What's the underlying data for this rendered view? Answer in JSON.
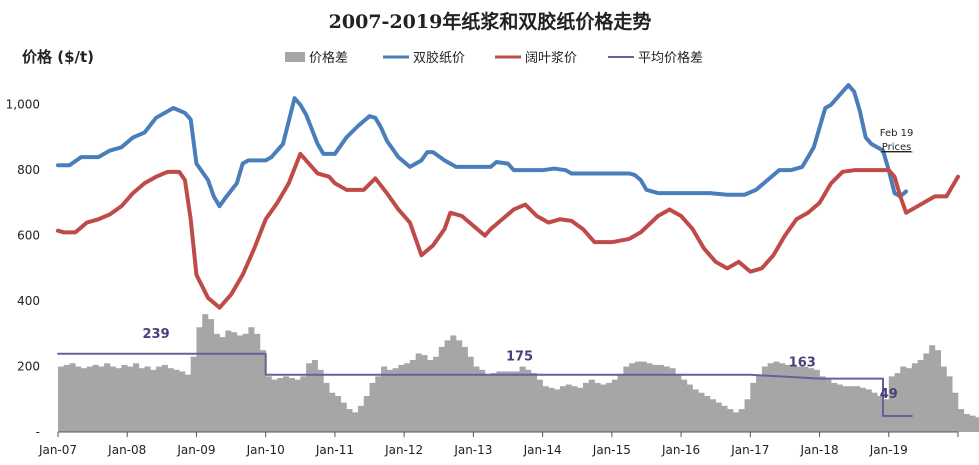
{
  "chart_data": {
    "type": "line",
    "title": "2007-2019年纸浆和双胶纸价格走势",
    "ylabel": "价格 ($/t)",
    "ylim": [
      0,
      1100
    ],
    "y_ticks": [
      "-",
      "200",
      "400",
      "600",
      "800",
      "1,000"
    ],
    "y_tick_values": [
      0,
      200,
      400,
      600,
      800,
      1000
    ],
    "x_ticks": [
      "Jan-07",
      "Jan-08",
      "Jan-09",
      "Jan-10",
      "Jan-11",
      "Jan-12",
      "Jan-13",
      "Jan-14",
      "Jan-15",
      "Jan-16",
      "Jan-17",
      "Jan-18",
      "Jan-19"
    ],
    "x_tick_values": [
      "2007-01",
      "2008-01",
      "2009-01",
      "2010-01",
      "2011-01",
      "2012-01",
      "2013-01",
      "2014-01",
      "2015-01",
      "2016-01",
      "2017-01",
      "2018-01",
      "2019-01"
    ],
    "x_end": "2020-01",
    "grid": false,
    "legend_position": "top",
    "legend": [
      {
        "name": "价格差",
        "kind": "bar",
        "color": "#a6a6a6"
      },
      {
        "name": "双胶纸价",
        "kind": "line",
        "color": "#4a7ebb"
      },
      {
        "name": "阔叶浆价",
        "kind": "line",
        "color": "#be4b48"
      },
      {
        "name": "平均价格差",
        "kind": "line",
        "color": "#6a5f9a"
      }
    ],
    "series": [
      {
        "name": "双胶纸价",
        "color": "#4a7ebb",
        "points": [
          [
            "2007-01",
            815
          ],
          [
            "2007-03",
            815
          ],
          [
            "2007-05",
            840
          ],
          [
            "2007-08",
            840
          ],
          [
            "2007-10",
            860
          ],
          [
            "2007-12",
            870
          ],
          [
            "2008-02",
            900
          ],
          [
            "2008-04",
            915
          ],
          [
            "2008-06",
            960
          ],
          [
            "2008-09",
            990
          ],
          [
            "2008-11",
            975
          ],
          [
            "2008-12",
            955
          ],
          [
            "2009-01",
            820
          ],
          [
            "2009-03",
            770
          ],
          [
            "2009-04",
            720
          ],
          [
            "2009-05",
            690
          ],
          [
            "2009-06",
            715
          ],
          [
            "2009-08",
            760
          ],
          [
            "2009-09",
            820
          ],
          [
            "2009-10",
            830
          ],
          [
            "2010-01",
            830
          ],
          [
            "2010-02",
            840
          ],
          [
            "2010-04",
            880
          ],
          [
            "2010-06",
            1020
          ],
          [
            "2010-07",
            1000
          ],
          [
            "2010-08",
            970
          ],
          [
            "2010-10",
            880
          ],
          [
            "2010-11",
            850
          ],
          [
            "2011-01",
            850
          ],
          [
            "2011-03",
            900
          ],
          [
            "2011-05",
            935
          ],
          [
            "2011-07",
            965
          ],
          [
            "2011-08",
            960
          ],
          [
            "2011-09",
            930
          ],
          [
            "2011-10",
            890
          ],
          [
            "2011-12",
            840
          ],
          [
            "2012-02",
            810
          ],
          [
            "2012-04",
            830
          ],
          [
            "2012-05",
            855
          ],
          [
            "2012-06",
            855
          ],
          [
            "2012-08",
            830
          ],
          [
            "2012-10",
            810
          ],
          [
            "2013-01",
            810
          ],
          [
            "2013-04",
            810
          ],
          [
            "2013-05",
            825
          ],
          [
            "2013-07",
            820
          ],
          [
            "2013-08",
            800
          ],
          [
            "2013-11",
            800
          ],
          [
            "2014-01",
            800
          ],
          [
            "2014-03",
            805
          ],
          [
            "2014-05",
            800
          ],
          [
            "2014-06",
            790
          ],
          [
            "2014-10",
            790
          ],
          [
            "2015-02",
            790
          ],
          [
            "2015-04",
            790
          ],
          [
            "2015-05",
            785
          ],
          [
            "2015-06",
            770
          ],
          [
            "2015-07",
            740
          ],
          [
            "2015-09",
            730
          ],
          [
            "2016-03",
            730
          ],
          [
            "2016-06",
            730
          ],
          [
            "2016-09",
            725
          ],
          [
            "2016-12",
            725
          ],
          [
            "2017-02",
            740
          ],
          [
            "2017-04",
            770
          ],
          [
            "2017-06",
            800
          ],
          [
            "2017-08",
            800
          ],
          [
            "2017-10",
            810
          ],
          [
            "2017-11",
            840
          ],
          [
            "2017-12",
            870
          ],
          [
            "2018-02",
            990
          ],
          [
            "2018-03",
            1000
          ],
          [
            "2018-04",
            1020
          ],
          [
            "2018-06",
            1060
          ],
          [
            "2018-07",
            1040
          ],
          [
            "2018-08",
            980
          ],
          [
            "2018-09",
            900
          ],
          [
            "2018-10",
            880
          ],
          [
            "2018-11",
            870
          ],
          [
            "2018-12",
            860
          ],
          [
            "2019-01",
            800
          ],
          [
            "2019-02",
            730
          ],
          [
            "2019-03",
            720
          ],
          [
            "2019-04",
            735
          ]
        ]
      },
      {
        "name": "阔叶浆价",
        "color": "#be4b48",
        "points": [
          [
            "2007-01",
            615
          ],
          [
            "2007-02",
            610
          ],
          [
            "2007-04",
            610
          ],
          [
            "2007-06",
            640
          ],
          [
            "2007-08",
            650
          ],
          [
            "2007-10",
            665
          ],
          [
            "2007-12",
            690
          ],
          [
            "2008-02",
            730
          ],
          [
            "2008-04",
            760
          ],
          [
            "2008-06",
            780
          ],
          [
            "2008-08",
            795
          ],
          [
            "2008-10",
            795
          ],
          [
            "2008-11",
            770
          ],
          [
            "2008-12",
            650
          ],
          [
            "2009-01",
            480
          ],
          [
            "2009-03",
            410
          ],
          [
            "2009-05",
            380
          ],
          [
            "2009-07",
            420
          ],
          [
            "2009-09",
            480
          ],
          [
            "2009-11",
            560
          ],
          [
            "2010-01",
            650
          ],
          [
            "2010-03",
            700
          ],
          [
            "2010-05",
            760
          ],
          [
            "2010-07",
            850
          ],
          [
            "2010-09",
            810
          ],
          [
            "2010-10",
            790
          ],
          [
            "2010-12",
            780
          ],
          [
            "2011-01",
            760
          ],
          [
            "2011-03",
            740
          ],
          [
            "2011-06",
            740
          ],
          [
            "2011-08",
            775
          ],
          [
            "2011-10",
            730
          ],
          [
            "2011-12",
            680
          ],
          [
            "2012-02",
            640
          ],
          [
            "2012-04",
            540
          ],
          [
            "2012-06",
            570
          ],
          [
            "2012-08",
            620
          ],
          [
            "2012-09",
            670
          ],
          [
            "2012-11",
            660
          ],
          [
            "2013-01",
            630
          ],
          [
            "2013-03",
            600
          ],
          [
            "2013-04",
            620
          ],
          [
            "2013-06",
            650
          ],
          [
            "2013-08",
            680
          ],
          [
            "2013-10",
            695
          ],
          [
            "2013-12",
            660
          ],
          [
            "2014-02",
            640
          ],
          [
            "2014-04",
            650
          ],
          [
            "2014-06",
            645
          ],
          [
            "2014-08",
            620
          ],
          [
            "2014-10",
            580
          ],
          [
            "2015-01",
            580
          ],
          [
            "2015-04",
            590
          ],
          [
            "2015-06",
            610
          ],
          [
            "2015-09",
            660
          ],
          [
            "2015-11",
            680
          ],
          [
            "2016-01",
            660
          ],
          [
            "2016-03",
            620
          ],
          [
            "2016-05",
            560
          ],
          [
            "2016-07",
            520
          ],
          [
            "2016-09",
            500
          ],
          [
            "2016-11",
            520
          ],
          [
            "2017-01",
            490
          ],
          [
            "2017-03",
            500
          ],
          [
            "2017-05",
            540
          ],
          [
            "2017-07",
            600
          ],
          [
            "2017-09",
            650
          ],
          [
            "2017-11",
            670
          ],
          [
            "2018-01",
            700
          ],
          [
            "2018-03",
            760
          ],
          [
            "2018-05",
            795
          ],
          [
            "2018-07",
            800
          ],
          [
            "2018-10",
            800
          ],
          [
            "2018-12",
            800
          ],
          [
            "2019-01",
            800
          ],
          [
            "2019-02",
            780
          ],
          [
            "2019-03",
            720
          ],
          [
            "2019-04",
            670
          ],
          [
            "2019-06",
            690
          ],
          [
            "2019-08",
            710
          ],
          [
            "2019-09",
            720
          ],
          [
            "2019-11",
            720
          ],
          [
            "2020-01",
            780
          ]
        ]
      },
      {
        "name": "平均价格差",
        "color": "#6a5f9a",
        "points": [
          [
            "2007-01",
            239
          ],
          [
            "2010-01",
            239
          ],
          [
            "2010-01",
            175
          ],
          [
            "2017-01",
            175
          ],
          [
            "2018-01",
            163
          ],
          [
            "2018-12",
            163
          ],
          [
            "2018-12",
            49
          ],
          [
            "2019-05",
            49
          ]
        ]
      }
    ],
    "bars": {
      "name": "价格差",
      "color": "#a6a6a6",
      "start": "2007-01",
      "interval": "month",
      "values": [
        200,
        205,
        210,
        200,
        195,
        200,
        205,
        200,
        210,
        200,
        195,
        205,
        200,
        210,
        195,
        200,
        190,
        200,
        205,
        195,
        190,
        185,
        175,
        230,
        320,
        360,
        345,
        300,
        290,
        310,
        305,
        295,
        300,
        320,
        300,
        250,
        170,
        160,
        165,
        170,
        165,
        160,
        170,
        210,
        220,
        190,
        150,
        120,
        110,
        90,
        70,
        60,
        80,
        110,
        150,
        170,
        200,
        190,
        195,
        205,
        210,
        220,
        240,
        235,
        220,
        230,
        260,
        280,
        295,
        280,
        260,
        230,
        200,
        190,
        175,
        180,
        185,
        185,
        185,
        185,
        200,
        190,
        180,
        160,
        140,
        135,
        130,
        140,
        145,
        140,
        135,
        150,
        160,
        150,
        145,
        150,
        160,
        175,
        200,
        210,
        215,
        215,
        210,
        205,
        205,
        200,
        195,
        175,
        160,
        145,
        130,
        120,
        110,
        100,
        90,
        80,
        70,
        60,
        70,
        100,
        150,
        175,
        200,
        210,
        215,
        210,
        205,
        200,
        200,
        200,
        195,
        190,
        170,
        160,
        150,
        145,
        140,
        140,
        140,
        135,
        130,
        120,
        110,
        100,
        170,
        180,
        200,
        195,
        210,
        220,
        240,
        265,
        250,
        200,
        170,
        120,
        70,
        55,
        50,
        45,
        40,
        40,
        40,
        45,
        50,
        40,
        40,
        35
      ]
    },
    "annotations": [
      {
        "text": "239",
        "x": "2008-06",
        "y": 239
      },
      {
        "text": "175",
        "x": "2013-09",
        "y": 175
      },
      {
        "text": "163",
        "x": "2017-10",
        "y": 163
      },
      {
        "text": "49",
        "x": "2019-01",
        "y": 49
      },
      {
        "text": "Feb 19",
        "x": "2019-02",
        "y": 800
      },
      {
        "text": "Prices",
        "x": "2019-02",
        "y": 800
      }
    ]
  }
}
